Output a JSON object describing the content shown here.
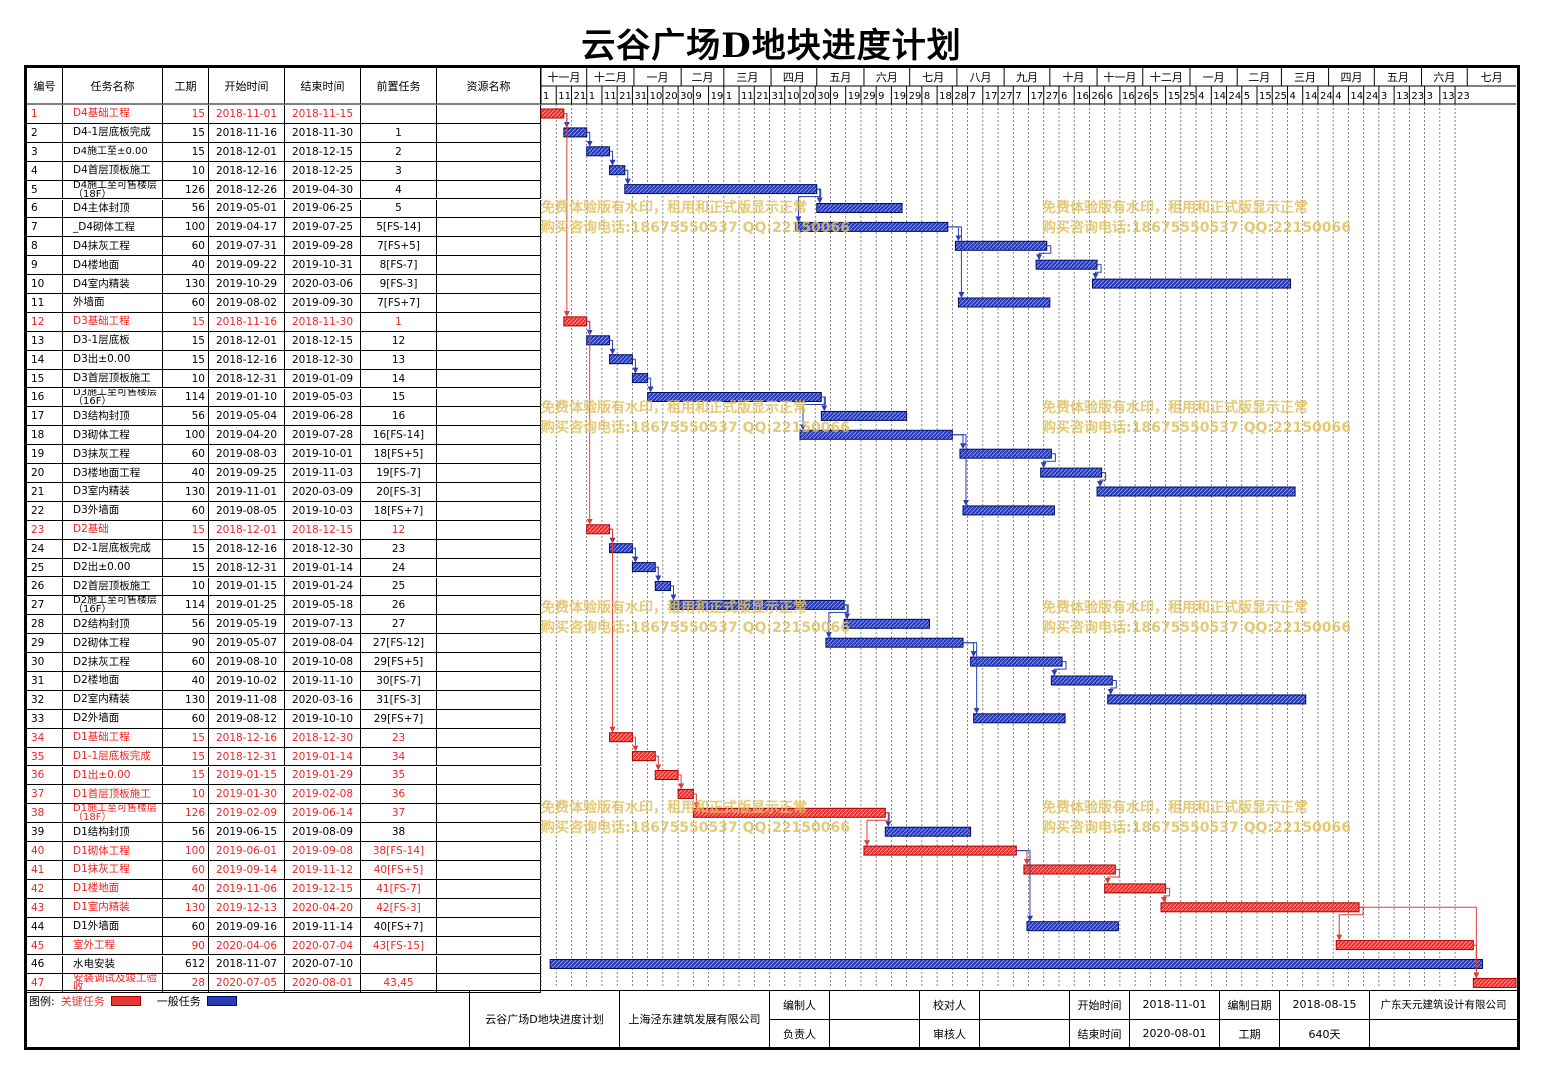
{
  "title": "云谷广场D地块进度计划",
  "columns": [
    "编号",
    "任务名称",
    "工期",
    "开始时间",
    "结束时间",
    "前置任务",
    "资源名称"
  ],
  "timeline": {
    "months": [
      "十一月",
      "十二月",
      "一月",
      "二月",
      "三月",
      "四月",
      "五月",
      "六月",
      "七月",
      "八月",
      "九月",
      "十月",
      "十一月",
      "十二月",
      "一月",
      "二月",
      "三月",
      "四月",
      "五月",
      "六月",
      "七月"
    ],
    "days": [
      "1",
      "11",
      "21",
      "1",
      "11",
      "21",
      "31",
      "10",
      "20",
      "30",
      "9",
      "19",
      "1",
      "11",
      "21",
      "31",
      "10",
      "20",
      "30",
      "9",
      "19",
      "29",
      "9",
      "19",
      "29",
      "8",
      "18",
      "28",
      "7",
      "17",
      "27",
      "7",
      "17",
      "27",
      "6",
      "16",
      "26",
      "6",
      "16",
      "26",
      "5",
      "15",
      "25",
      "4",
      "14",
      "24",
      "5",
      "15",
      "25",
      "4",
      "14",
      "24",
      "4",
      "14",
      "24",
      "3",
      "13",
      "23",
      "3",
      "13",
      "23"
    ]
  },
  "tasks": [
    {
      "id": "1",
      "name": "D4基础工程",
      "dur": "15",
      "start": "2018-11-01",
      "end": "2018-11-15",
      "pred": "",
      "critical": true
    },
    {
      "id": "2",
      "name": "D4-1层底板完成",
      "dur": "15",
      "start": "2018-11-16",
      "end": "2018-11-30",
      "pred": "1",
      "critical": false
    },
    {
      "id": "3",
      "name": "D4施工至±0.00",
      "dur": "15",
      "start": "2018-12-01",
      "end": "2018-12-15",
      "pred": "2",
      "critical": false
    },
    {
      "id": "4",
      "name": "D4首层顶板施工",
      "dur": "10",
      "start": "2018-12-16",
      "end": "2018-12-25",
      "pred": "3",
      "critical": false
    },
    {
      "id": "5",
      "name": "D4施工至可售楼层（18F）",
      "dur": "126",
      "start": "2018-12-26",
      "end": "2019-04-30",
      "pred": "4",
      "critical": false
    },
    {
      "id": "6",
      "name": "D4主体封顶",
      "dur": "56",
      "start": "2019-05-01",
      "end": "2019-06-25",
      "pred": "5",
      "critical": false
    },
    {
      "id": "7",
      "name": "_D4砌体工程",
      "dur": "100",
      "start": "2019-04-17",
      "end": "2019-07-25",
      "pred": "5[FS-14]",
      "critical": false
    },
    {
      "id": "8",
      "name": "D4抹灰工程",
      "dur": "60",
      "start": "2019-07-31",
      "end": "2019-09-28",
      "pred": "7[FS+5]",
      "critical": false
    },
    {
      "id": "9",
      "name": "D4楼地面",
      "dur": "40",
      "start": "2019-09-22",
      "end": "2019-10-31",
      "pred": "8[FS-7]",
      "critical": false
    },
    {
      "id": "10",
      "name": "D4室内精装",
      "dur": "130",
      "start": "2019-10-29",
      "end": "2020-03-06",
      "pred": "9[FS-3]",
      "critical": false
    },
    {
      "id": "11",
      "name": "外墙面",
      "dur": "60",
      "start": "2019-08-02",
      "end": "2019-09-30",
      "pred": "7[FS+7]",
      "critical": false
    },
    {
      "id": "12",
      "name": "D3基础工程",
      "dur": "15",
      "start": "2018-11-16",
      "end": "2018-11-30",
      "pred": "1",
      "critical": true
    },
    {
      "id": "13",
      "name": "D3-1层底板",
      "dur": "15",
      "start": "2018-12-01",
      "end": "2018-12-15",
      "pred": "12",
      "critical": false
    },
    {
      "id": "14",
      "name": "D3出±0.00",
      "dur": "15",
      "start": "2018-12-16",
      "end": "2018-12-30",
      "pred": "13",
      "critical": false
    },
    {
      "id": "15",
      "name": "D3首层顶板施工",
      "dur": "10",
      "start": "2018-12-31",
      "end": "2019-01-09",
      "pred": "14",
      "critical": false
    },
    {
      "id": "16",
      "name": "D3施工至可售楼层（16F）",
      "dur": "114",
      "start": "2019-01-10",
      "end": "2019-05-03",
      "pred": "15",
      "critical": false
    },
    {
      "id": "17",
      "name": "D3结构封顶",
      "dur": "56",
      "start": "2019-05-04",
      "end": "2019-06-28",
      "pred": "16",
      "critical": false
    },
    {
      "id": "18",
      "name": "D3砌体工程",
      "dur": "100",
      "start": "2019-04-20",
      "end": "2019-07-28",
      "pred": "16[FS-14]",
      "critical": false
    },
    {
      "id": "19",
      "name": "D3抹灰工程",
      "dur": "60",
      "start": "2019-08-03",
      "end": "2019-10-01",
      "pred": "18[FS+5]",
      "critical": false
    },
    {
      "id": "20",
      "name": "D3楼地面工程",
      "dur": "40",
      "start": "2019-09-25",
      "end": "2019-11-03",
      "pred": "19[FS-7]",
      "critical": false
    },
    {
      "id": "21",
      "name": "D3室内精装",
      "dur": "130",
      "start": "2019-11-01",
      "end": "2020-03-09",
      "pred": "20[FS-3]",
      "critical": false
    },
    {
      "id": "22",
      "name": "D3外墙面",
      "dur": "60",
      "start": "2019-08-05",
      "end": "2019-10-03",
      "pred": "18[FS+7]",
      "critical": false
    },
    {
      "id": "23",
      "name": "D2基础",
      "dur": "15",
      "start": "2018-12-01",
      "end": "2018-12-15",
      "pred": "12",
      "critical": true
    },
    {
      "id": "24",
      "name": "D2-1层底板完成",
      "dur": "15",
      "start": "2018-12-16",
      "end": "2018-12-30",
      "pred": "23",
      "critical": false
    },
    {
      "id": "25",
      "name": "D2出±0.00",
      "dur": "15",
      "start": "2018-12-31",
      "end": "2019-01-14",
      "pred": "24",
      "critical": false
    },
    {
      "id": "26",
      "name": "D2首层顶板施工",
      "dur": "10",
      "start": "2019-01-15",
      "end": "2019-01-24",
      "pred": "25",
      "critical": false
    },
    {
      "id": "27",
      "name": "D2施工至可售楼层（16F）",
      "dur": "114",
      "start": "2019-01-25",
      "end": "2019-05-18",
      "pred": "26",
      "critical": false
    },
    {
      "id": "28",
      "name": "D2结构封顶",
      "dur": "56",
      "start": "2019-05-19",
      "end": "2019-07-13",
      "pred": "27",
      "critical": false
    },
    {
      "id": "29",
      "name": "D2砌体工程",
      "dur": "90",
      "start": "2019-05-07",
      "end": "2019-08-04",
      "pred": "27[FS-12]",
      "critical": false
    },
    {
      "id": "30",
      "name": "D2抹灰工程",
      "dur": "60",
      "start": "2019-08-10",
      "end": "2019-10-08",
      "pred": "29[FS+5]",
      "critical": false
    },
    {
      "id": "31",
      "name": "D2楼地面",
      "dur": "40",
      "start": "2019-10-02",
      "end": "2019-11-10",
      "pred": "30[FS-7]",
      "critical": false
    },
    {
      "id": "32",
      "name": "D2室内精装",
      "dur": "130",
      "start": "2019-11-08",
      "end": "2020-03-16",
      "pred": "31[FS-3]",
      "critical": false
    },
    {
      "id": "33",
      "name": "D2外墙面",
      "dur": "60",
      "start": "2019-08-12",
      "end": "2019-10-10",
      "pred": "29[FS+7]",
      "critical": false
    },
    {
      "id": "34",
      "name": "D1基础工程",
      "dur": "15",
      "start": "2018-12-16",
      "end": "2018-12-30",
      "pred": "23",
      "critical": true
    },
    {
      "id": "35",
      "name": "D1-1层底板完成",
      "dur": "15",
      "start": "2018-12-31",
      "end": "2019-01-14",
      "pred": "34",
      "critical": true
    },
    {
      "id": "36",
      "name": "D1出±0.00",
      "dur": "15",
      "start": "2019-01-15",
      "end": "2019-01-29",
      "pred": "35",
      "critical": true
    },
    {
      "id": "37",
      "name": "D1首层顶板施工",
      "dur": "10",
      "start": "2019-01-30",
      "end": "2019-02-08",
      "pred": "36",
      "critical": true
    },
    {
      "id": "38",
      "name": "D1施工至可售楼层（18F）",
      "dur": "126",
      "start": "2019-02-09",
      "end": "2019-06-14",
      "pred": "37",
      "critical": true
    },
    {
      "id": "39",
      "name": "D1结构封顶",
      "dur": "56",
      "start": "2019-06-15",
      "end": "2019-08-09",
      "pred": "38",
      "critical": false
    },
    {
      "id": "40",
      "name": "D1砌体工程",
      "dur": "100",
      "start": "2019-06-01",
      "end": "2019-09-08",
      "pred": "38[FS-14]",
      "critical": true
    },
    {
      "id": "41",
      "name": "D1抹灰工程",
      "dur": "60",
      "start": "2019-09-14",
      "end": "2019-11-12",
      "pred": "40[FS+5]",
      "critical": true
    },
    {
      "id": "42",
      "name": "D1楼地面",
      "dur": "40",
      "start": "2019-11-06",
      "end": "2019-12-15",
      "pred": "41[FS-7]",
      "critical": true
    },
    {
      "id": "43",
      "name": "D1室内精装",
      "dur": "130",
      "start": "2019-12-13",
      "end": "2020-04-20",
      "pred": "42[FS-3]",
      "critical": true
    },
    {
      "id": "44",
      "name": "D1外墙面",
      "dur": "60",
      "start": "2019-09-16",
      "end": "2019-11-14",
      "pred": "40[FS+7]",
      "critical": false
    },
    {
      "id": "45",
      "name": "室外工程",
      "dur": "90",
      "start": "2020-04-06",
      "end": "2020-07-04",
      "pred": "43[FS-15]",
      "critical": true
    },
    {
      "id": "46",
      "name": "水电安装",
      "dur": "612",
      "start": "2018-11-07",
      "end": "2020-07-10",
      "pred": "",
      "critical": false
    },
    {
      "id": "47",
      "name": "安装调试及竣工验收",
      "dur": "28",
      "start": "2020-07-05",
      "end": "2020-08-01",
      "pred": "43,45",
      "critical": true
    }
  ],
  "watermark": {
    "line1": "免费体验版有水印，租用和正式版显示正常",
    "line2": "购买咨询电话:18675550537 QQ:22150066"
  },
  "legend": {
    "label": "图例:",
    "critical": "关键任务",
    "normal": "一般任务"
  },
  "footer": {
    "plan_name": "云谷广场D地块进度计划",
    "company": "上海泾东建筑发展有限公司",
    "compiler_label": "编制人",
    "checker_label": "校对人",
    "owner_label": "负责人",
    "reviewer_label": "审核人",
    "start_label": "开始时间",
    "start_value": "2018-11-01",
    "date_label": "编制日期",
    "date_value": "2018-08-15",
    "end_label": "结束时间",
    "end_value": "2020-08-01",
    "duration_label": "工期",
    "duration_value": "640天",
    "designer": "广东天元建筑设计有限公司"
  },
  "colors": {
    "critical": "#e53935",
    "normal": "#2a3db5",
    "border": "#000000",
    "grid": "#555555",
    "watermark": "#e0c060"
  },
  "chart_data": {
    "type": "gantt",
    "title": "云谷广场D地块进度计划",
    "x_range": [
      "2018-11-01",
      "2020-08-01"
    ],
    "tasks_ref": "tasks"
  }
}
